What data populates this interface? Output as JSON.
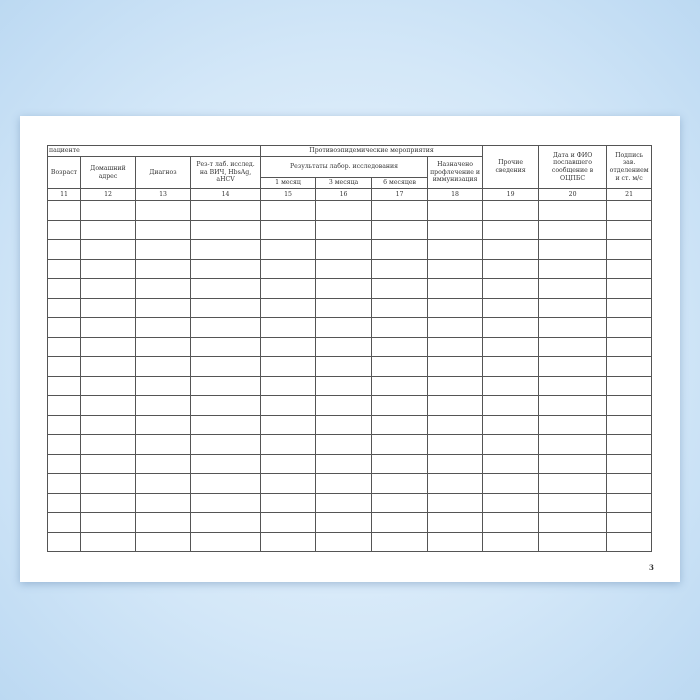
{
  "header": {
    "patient_group": "пациенте",
    "measures_group": "Противоэпидемические мероприятия",
    "lab_results_group": "Результаты лабор. исследования",
    "columns": [
      {
        "label": "Возраст",
        "number": "11"
      },
      {
        "label": "Домашний адрес",
        "number": "12"
      },
      {
        "label": "Диагноз",
        "number": "13"
      },
      {
        "label": "Рез-т лаб. исслед. на ВИЧ, HbsAg, aHCV",
        "number": "14"
      },
      {
        "label": "1 месяц",
        "number": "15"
      },
      {
        "label": "3 месяца",
        "number": "16"
      },
      {
        "label": "6 месяцев",
        "number": "17"
      },
      {
        "label": "Назначено профлечение и иммунизация",
        "number": "18"
      },
      {
        "label": "Прочие сведения",
        "number": "19"
      },
      {
        "label": "Дата и ФИО пославшего сообщение в ОЦПБС",
        "number": "20"
      },
      {
        "label": "Подпись зав. отделением и ст. м/с",
        "number": "21"
      }
    ]
  },
  "empty_rows": 18,
  "page_number": "3"
}
